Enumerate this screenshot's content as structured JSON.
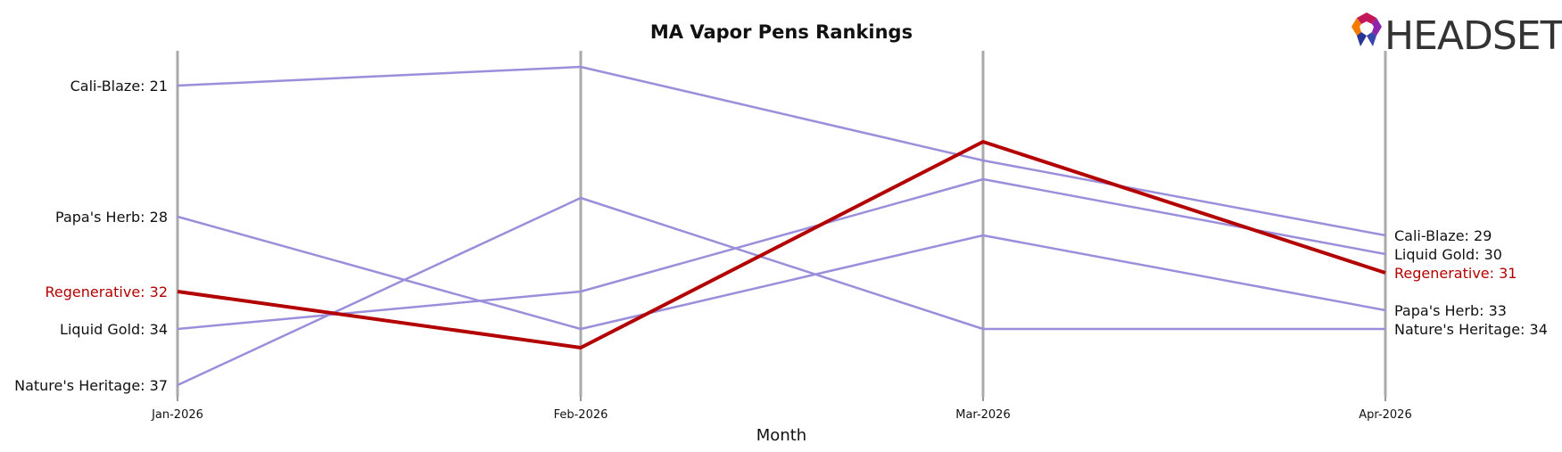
{
  "chart_data": {
    "type": "line",
    "title": "MA Vapor Pens Rankings",
    "xlabel": "Month",
    "ylabel": "",
    "categories": [
      "Jan-2026",
      "Feb-2026",
      "Mar-2026",
      "Apr-2026"
    ],
    "y_axis": "rank (inverted, lower number at top)",
    "ylim": [
      20,
      37
    ],
    "grid": "vertical lines at each month",
    "highlight_color": "#b30000",
    "series_color": "#9b8fdb",
    "series": [
      {
        "name": "Cali-Blaze",
        "values": [
          21,
          20,
          25,
          29
        ],
        "highlight": false,
        "start_label": "Cali-Blaze: 21",
        "end_label": "Cali-Blaze: 29"
      },
      {
        "name": "Papa's Herb",
        "values": [
          28,
          34,
          29,
          33
        ],
        "highlight": false,
        "start_label": "Papa's Herb: 28",
        "end_label": "Papa's Herb: 33"
      },
      {
        "name": "Regenerative",
        "values": [
          32,
          35,
          24,
          31
        ],
        "highlight": true,
        "start_label": "Regenerative: 32",
        "end_label": "Regenerative: 31"
      },
      {
        "name": "Liquid Gold",
        "values": [
          34,
          32,
          26,
          30
        ],
        "highlight": false,
        "start_label": "Liquid Gold: 34",
        "end_label": "Liquid Gold: 30"
      },
      {
        "name": "Nature's Heritage",
        "values": [
          37,
          27,
          34,
          34
        ],
        "highlight": false,
        "start_label": "Nature's Heritage: 37",
        "end_label": "Nature's Heritage: 34"
      }
    ]
  },
  "logo": {
    "text": "HEADSET",
    "icon": "headset-logo-icon"
  }
}
